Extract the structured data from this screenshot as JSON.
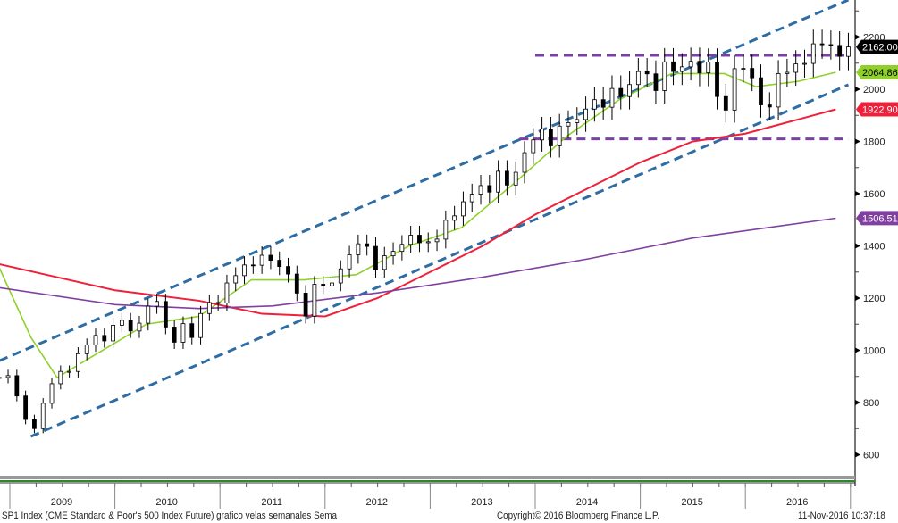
{
  "chart_data": {
    "type": "candlestick",
    "title": "SP1 Index (CME Standard & Poor's 500 Index Future) grafico velas semanales  Sema",
    "ylim": [
      560,
      2330
    ],
    "y_ticks": [
      600,
      800,
      1000,
      1200,
      1400,
      1600,
      1800,
      2000,
      2200
    ],
    "x_ticks": [
      "2009",
      "2010",
      "2011",
      "2012",
      "2013",
      "2014",
      "2015",
      "2016"
    ],
    "start": 2008.9,
    "step_years": 0.0833,
    "closes": [
      896,
      903,
      825,
      735,
      700,
      797,
      872,
      919,
      919,
      987,
      1020,
      1057,
      1036,
      1096,
      1115,
      1074,
      1104,
      1169,
      1187,
      1089,
      1031,
      1102,
      1049,
      1141,
      1183,
      1181,
      1258,
      1286,
      1327,
      1326,
      1364,
      1345,
      1321,
      1292,
      1219,
      1131,
      1253,
      1247,
      1258,
      1312,
      1366,
      1408,
      1398,
      1310,
      1362,
      1379,
      1406,
      1441,
      1412,
      1416,
      1426,
      1498,
      1515,
      1569,
      1598,
      1631,
      1606,
      1686,
      1633,
      1682,
      1757,
      1806,
      1848,
      1783,
      1859,
      1872,
      1884,
      1924,
      1960,
      1931,
      2003,
      1972,
      2018,
      2068,
      2059,
      1995,
      2105,
      2068,
      2086,
      2107,
      2063,
      2104,
      1972,
      1920,
      2079,
      2080,
      2044,
      1940,
      1932,
      2060,
      2065,
      2097,
      2099,
      2174,
      2171,
      2168,
      2126,
      2162
    ],
    "series": [
      {
        "name": "MA short",
        "color": "#8fd12a",
        "last": "2064.86",
        "points": [
          [
            2008.9,
            1316
          ],
          [
            2009.2,
            1050
          ],
          [
            2009.45,
            895
          ],
          [
            2009.8,
            980
          ],
          [
            2010.3,
            1100
          ],
          [
            2010.8,
            1130
          ],
          [
            2011.3,
            1270
          ],
          [
            2011.8,
            1270
          ],
          [
            2012.3,
            1290
          ],
          [
            2012.8,
            1400
          ],
          [
            2013.3,
            1470
          ],
          [
            2013.8,
            1640
          ],
          [
            2014.3,
            1820
          ],
          [
            2014.8,
            1960
          ],
          [
            2015.3,
            2060
          ],
          [
            2015.8,
            2060
          ],
          [
            2016.1,
            2010
          ],
          [
            2016.5,
            2030
          ],
          [
            2016.86,
            2065
          ]
        ]
      },
      {
        "name": "MA medium",
        "color": "#f0203a",
        "last": "1922.90",
        "points": [
          [
            2008.9,
            1330
          ],
          [
            2010.0,
            1230
          ],
          [
            2010.8,
            1190
          ],
          [
            2011.4,
            1140
          ],
          [
            2012.0,
            1130
          ],
          [
            2012.5,
            1200
          ],
          [
            2013.0,
            1300
          ],
          [
            2013.5,
            1400
          ],
          [
            2014.0,
            1520
          ],
          [
            2014.5,
            1620
          ],
          [
            2015.0,
            1720
          ],
          [
            2015.5,
            1800
          ],
          [
            2016.0,
            1830
          ],
          [
            2016.86,
            1923
          ]
        ]
      },
      {
        "name": "MA long",
        "color": "#8040a0",
        "last": "1506.51",
        "points": [
          [
            2008.9,
            1240
          ],
          [
            2010.0,
            1175
          ],
          [
            2010.8,
            1160
          ],
          [
            2011.5,
            1170
          ],
          [
            2012.5,
            1220
          ],
          [
            2013.5,
            1280
          ],
          [
            2014.5,
            1350
          ],
          [
            2015.5,
            1430
          ],
          [
            2016.86,
            1506
          ]
        ]
      }
    ],
    "trendlines": [
      {
        "color": "#2e6da4",
        "from": [
          2008.9,
          960
        ],
        "to": [
          2016.98,
          2342
        ]
      },
      {
        "color": "#2e6da4",
        "from": [
          2009.2,
          670
        ],
        "to": [
          2016.98,
          2017
        ]
      },
      {
        "color": "#7b3fa8",
        "from": [
          2014.0,
          2130
        ],
        "to": [
          2016.98,
          2130
        ]
      },
      {
        "color": "#7b3fa8",
        "from": [
          2013.85,
          1810
        ],
        "to": [
          2016.98,
          1810
        ]
      }
    ],
    "last_price": "2162.00"
  },
  "footer": {
    "left": "SP1 Index (CME Standard & Poor's 500 Index Future) grafico velas semanales  Sema",
    "center": "Copyright© 2016 Bloomberg Finance L.P.",
    "right": "11-Nov-2016 10:37:18"
  }
}
